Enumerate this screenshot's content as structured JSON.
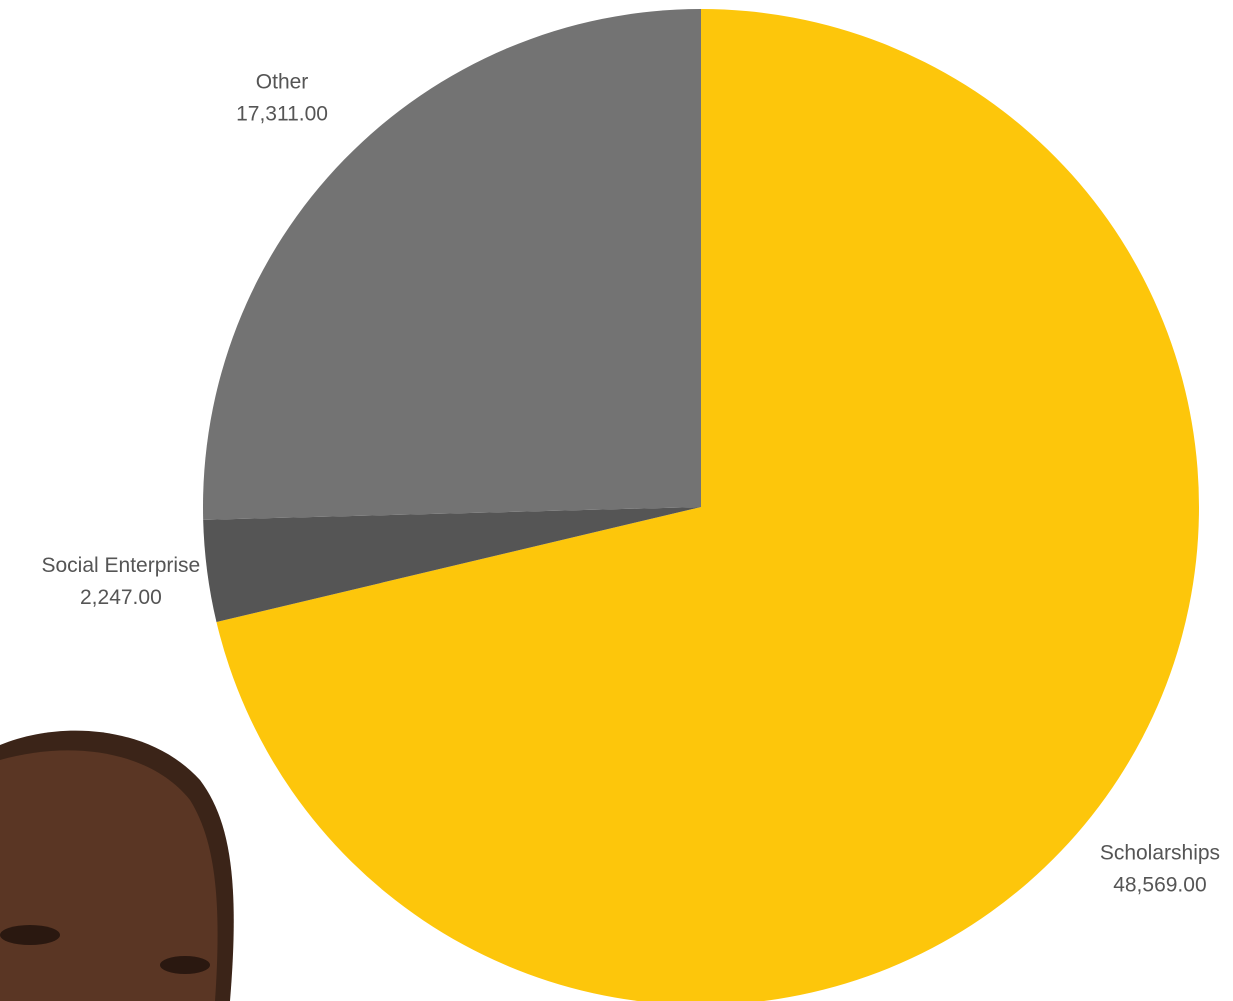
{
  "chart_data": {
    "type": "pie",
    "categories": [
      "Scholarships",
      "Social Enterprise",
      "Other"
    ],
    "values": [
      48569,
      2247,
      17311
    ],
    "value_labels": [
      "48,569.00",
      "2,247.00",
      "17,311.00"
    ],
    "colors": [
      "#fdc60b",
      "#555555",
      "#737373"
    ]
  }
}
